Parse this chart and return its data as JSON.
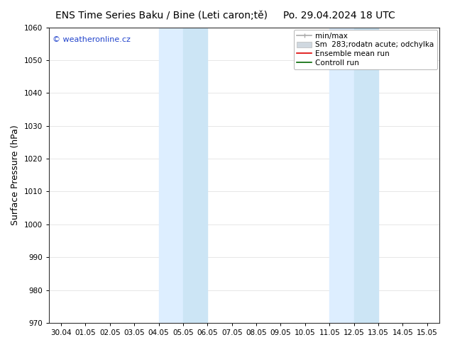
{
  "title": "ENS Time Series Baku / Bine (Leti caron;tě)",
  "date_label": "Po. 29.04.2024 18 UTC",
  "ylabel": "Surface Pressure (hPa)",
  "ylim": [
    970,
    1060
  ],
  "yticks": [
    970,
    980,
    990,
    1000,
    1010,
    1020,
    1030,
    1040,
    1050,
    1060
  ],
  "xtick_labels": [
    "30.04",
    "01.05",
    "02.05",
    "03.05",
    "04.05",
    "05.05",
    "06.05",
    "07.05",
    "08.05",
    "09.05",
    "10.05",
    "11.05",
    "12.05",
    "13.05",
    "14.05",
    "15.05"
  ],
  "shaded_regions": [
    {
      "start": 4.0,
      "end": 5.0,
      "color": "#ddeeff"
    },
    {
      "start": 5.0,
      "end": 6.0,
      "color": "#cce5f5"
    },
    {
      "start": 11.0,
      "end": 12.0,
      "color": "#ddeeff"
    },
    {
      "start": 12.0,
      "end": 13.0,
      "color": "#cce5f5"
    }
  ],
  "bg_color": "#ffffff",
  "plot_bg_color": "#ffffff",
  "watermark_text": "© weatheronline.cz",
  "watermark_color": "#2244cc",
  "title_fontsize": 10,
  "tick_fontsize": 7.5,
  "ylabel_fontsize": 9,
  "legend_fontsize": 7.5,
  "grid_color": "#dddddd",
  "spine_color": "#333333",
  "minmax_color": "#aaaaaa",
  "std_color": "#d0d8e0",
  "mean_color": "#dd0000",
  "control_color": "#006600"
}
